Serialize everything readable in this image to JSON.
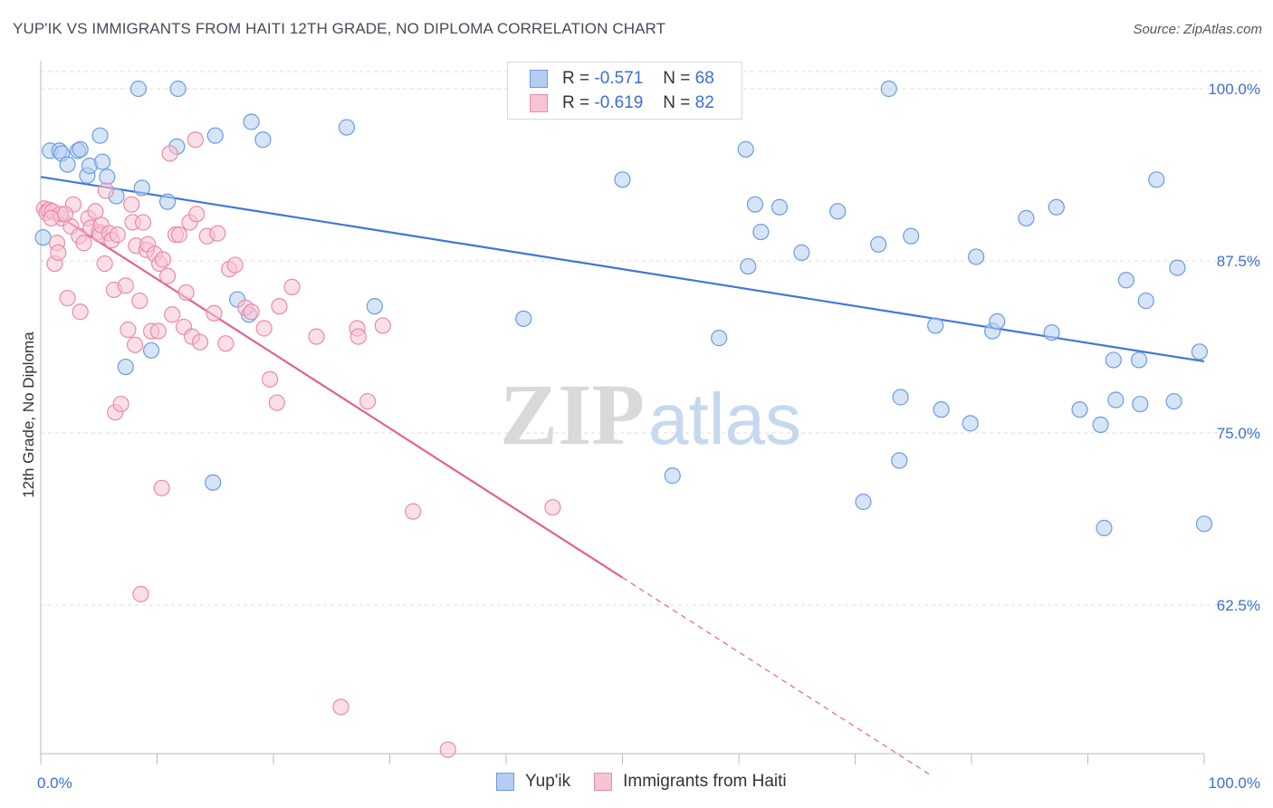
{
  "title": "YUP'IK VS IMMIGRANTS FROM HAITI 12TH GRADE, NO DIPLOMA CORRELATION CHART",
  "source": "Source: ZipAtlas.com",
  "watermark": {
    "zip": "ZIP",
    "atlas": "atlas"
  },
  "legend": {
    "r_label": "R =",
    "n_label": "N =",
    "series": [
      {
        "name": "Yup'ik",
        "r": "-0.571",
        "n": "68",
        "fill": "#b4cdf0",
        "stroke": "#6d9be0"
      },
      {
        "name": "Immigrants from Haiti",
        "r": "-0.619",
        "n": "82",
        "fill": "#f8c4d4",
        "stroke": "#ea8aa8"
      }
    ]
  },
  "chart_data": {
    "type": "scatter",
    "xlabel": "",
    "ylabel": "12th Grade, No Diploma",
    "xlim": [
      0,
      100
    ],
    "ylim": [
      50,
      102
    ],
    "x_tick_labels": [
      "0.0%",
      "100.0%"
    ],
    "y_ticks": [
      62.5,
      75.0,
      87.5,
      100.0
    ],
    "y_tick_labels": [
      "62.5%",
      "75.0%",
      "87.5%",
      "100.0%"
    ],
    "grid": true,
    "series": [
      {
        "name": "Yup'ik",
        "color": "#3d78d8",
        "trend": {
          "x": [
            0,
            100
          ],
          "y": [
            93.6,
            80.2
          ],
          "dashed_to": null
        },
        "points": [
          [
            0.2,
            89.2
          ],
          [
            0.8,
            95.5
          ],
          [
            1.6,
            95.5
          ],
          [
            1.8,
            95.3
          ],
          [
            2.3,
            94.5
          ],
          [
            3.2,
            95.5
          ],
          [
            3.4,
            95.6
          ],
          [
            4.0,
            93.7
          ],
          [
            4.2,
            94.4
          ],
          [
            5.1,
            96.6
          ],
          [
            5.3,
            94.7
          ],
          [
            5.7,
            93.6
          ],
          [
            6.5,
            92.2
          ],
          [
            7.3,
            79.8
          ],
          [
            8.4,
            100.0
          ],
          [
            8.7,
            92.8
          ],
          [
            9.5,
            81.0
          ],
          [
            10.9,
            91.8
          ],
          [
            11.7,
            95.8
          ],
          [
            11.8,
            100.0
          ],
          [
            15.0,
            96.6
          ],
          [
            14.8,
            71.4
          ],
          [
            16.9,
            84.7
          ],
          [
            17.9,
            83.6
          ],
          [
            18.1,
            97.6
          ],
          [
            19.1,
            96.3
          ],
          [
            26.3,
            97.2
          ],
          [
            28.7,
            84.2
          ],
          [
            41.5,
            83.3
          ],
          [
            50.0,
            93.4
          ],
          [
            54.3,
            71.9
          ],
          [
            58.3,
            81.9
          ],
          [
            60.6,
            95.6
          ],
          [
            60.8,
            87.1
          ],
          [
            61.4,
            91.6
          ],
          [
            61.9,
            89.6
          ],
          [
            63.5,
            91.4
          ],
          [
            65.4,
            88.1
          ],
          [
            68.5,
            91.1
          ],
          [
            70.7,
            70.0
          ],
          [
            72.0,
            88.7
          ],
          [
            73.8,
            73.0
          ],
          [
            73.9,
            77.6
          ],
          [
            74.8,
            89.3
          ],
          [
            76.9,
            82.8
          ],
          [
            77.4,
            76.7
          ],
          [
            79.9,
            75.7
          ],
          [
            80.4,
            87.8
          ],
          [
            81.8,
            82.4
          ],
          [
            82.2,
            83.1
          ],
          [
            84.7,
            90.6
          ],
          [
            86.9,
            82.3
          ],
          [
            87.3,
            91.4
          ],
          [
            89.3,
            76.7
          ],
          [
            91.1,
            75.6
          ],
          [
            91.4,
            68.1
          ],
          [
            92.2,
            80.3
          ],
          [
            92.4,
            77.4
          ],
          [
            93.3,
            86.1
          ],
          [
            94.4,
            80.3
          ],
          [
            94.5,
            77.1
          ],
          [
            95.0,
            84.6
          ],
          [
            95.9,
            93.4
          ],
          [
            97.4,
            77.3
          ],
          [
            97.7,
            87.0
          ],
          [
            99.6,
            80.9
          ],
          [
            100.0,
            68.4
          ],
          [
            72.9,
            100.0
          ]
        ]
      },
      {
        "name": "Immigrants from Haiti",
        "color": "#e0628f",
        "trend": {
          "x": [
            0,
            50
          ],
          "y": [
            91.6,
            64.5
          ],
          "dashed_to": [
            76.4,
            50.2
          ]
        },
        "points": [
          [
            0.3,
            91.3
          ],
          [
            0.5,
            91.0
          ],
          [
            0.7,
            91.2
          ],
          [
            1.0,
            91.1
          ],
          [
            1.2,
            87.3
          ],
          [
            1.4,
            88.8
          ],
          [
            1.5,
            88.1
          ],
          [
            1.8,
            90.6
          ],
          [
            2.3,
            84.8
          ],
          [
            2.6,
            90.0
          ],
          [
            2.8,
            91.6
          ],
          [
            3.3,
            89.3
          ],
          [
            3.4,
            83.8
          ],
          [
            3.7,
            88.8
          ],
          [
            4.1,
            90.6
          ],
          [
            4.3,
            89.9
          ],
          [
            4.7,
            91.1
          ],
          [
            5.0,
            89.6
          ],
          [
            5.1,
            89.4
          ],
          [
            5.2,
            90.1
          ],
          [
            5.5,
            87.3
          ],
          [
            5.6,
            92.6
          ],
          [
            5.9,
            89.5
          ],
          [
            6.1,
            89.0
          ],
          [
            6.3,
            85.4
          ],
          [
            6.4,
            76.5
          ],
          [
            6.6,
            89.4
          ],
          [
            6.9,
            77.1
          ],
          [
            7.3,
            85.7
          ],
          [
            7.5,
            82.5
          ],
          [
            7.8,
            91.6
          ],
          [
            7.9,
            90.3
          ],
          [
            8.1,
            81.4
          ],
          [
            8.2,
            88.6
          ],
          [
            8.5,
            84.6
          ],
          [
            8.6,
            63.3
          ],
          [
            8.8,
            90.3
          ],
          [
            9.1,
            88.3
          ],
          [
            9.2,
            88.7
          ],
          [
            9.5,
            82.4
          ],
          [
            9.8,
            88.0
          ],
          [
            10.1,
            82.4
          ],
          [
            10.2,
            87.3
          ],
          [
            10.4,
            71.0
          ],
          [
            10.5,
            87.6
          ],
          [
            10.9,
            86.4
          ],
          [
            11.1,
            95.3
          ],
          [
            11.3,
            83.6
          ],
          [
            11.6,
            89.4
          ],
          [
            11.9,
            89.4
          ],
          [
            12.3,
            82.7
          ],
          [
            12.5,
            85.2
          ],
          [
            12.8,
            90.3
          ],
          [
            13.0,
            82.0
          ],
          [
            13.3,
            96.3
          ],
          [
            13.4,
            90.9
          ],
          [
            13.7,
            81.6
          ],
          [
            14.3,
            89.3
          ],
          [
            14.9,
            83.7
          ],
          [
            15.2,
            89.5
          ],
          [
            15.9,
            81.5
          ],
          [
            16.2,
            86.9
          ],
          [
            16.7,
            87.2
          ],
          [
            17.6,
            84.1
          ],
          [
            18.1,
            83.8
          ],
          [
            19.2,
            82.6
          ],
          [
            19.7,
            78.9
          ],
          [
            20.3,
            77.2
          ],
          [
            20.5,
            84.2
          ],
          [
            21.6,
            85.6
          ],
          [
            23.7,
            82.0
          ],
          [
            25.8,
            55.1
          ],
          [
            27.2,
            82.6
          ],
          [
            27.3,
            82.0
          ],
          [
            28.1,
            77.3
          ],
          [
            29.4,
            82.8
          ],
          [
            32.0,
            69.3
          ],
          [
            35.0,
            52.0
          ],
          [
            44.0,
            69.6
          ],
          [
            1.7,
            90.9
          ],
          [
            0.9,
            90.6
          ],
          [
            2.1,
            90.9
          ]
        ]
      }
    ]
  }
}
